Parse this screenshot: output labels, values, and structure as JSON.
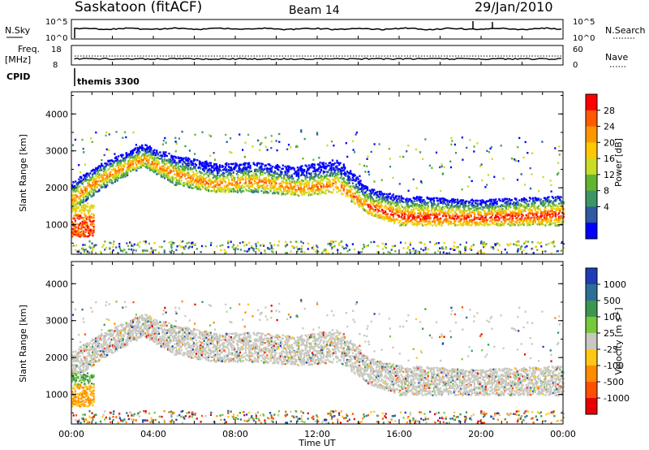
{
  "header": {
    "station": "Saskatoon (fitACF)",
    "beam": "Beam 14",
    "date": "29/Jan/2010"
  },
  "top_panel_labels": {
    "nsky": "N.Sky",
    "nsky_tick_top": "10^5",
    "nsky_tick_bottom": "10^0",
    "nsearch": "N.Search",
    "nsearch_tick_top": "10^5",
    "nsearch_tick_bottom": "10^0",
    "freq": "Freq.",
    "freq_unit": "[MHz]",
    "freq_tick_top": "18",
    "freq_tick_bottom": "8",
    "nave": "Nave",
    "nave_tick_top": "60",
    "nave_tick_bottom": "0",
    "cpid": "CPID",
    "cpid_value": "themis 3300"
  },
  "chart_data": [
    {
      "type": "heatmap",
      "name": "power",
      "ylabel": "Slant Range [km]",
      "ylim": [
        200,
        4600
      ],
      "yticks": [
        "1000",
        "2000",
        "3000",
        "4000"
      ],
      "xlim_hours": [
        0,
        24
      ],
      "colorbar": {
        "label": "Power [dB]",
        "ticks": [
          "28",
          "24",
          "20",
          "16",
          "12",
          "8",
          "4"
        ],
        "colors": [
          "#ff0000",
          "#ff5a00",
          "#ff9600",
          "#ffc800",
          "#c8dc28",
          "#64b432",
          "#3c9664",
          "#2d5aa0",
          "#0000ff"
        ]
      },
      "echo_bands_km": [
        {
          "t": 0.0,
          "lo": 1400,
          "hi": 2200,
          "peak": 1700
        },
        {
          "t": 1.5,
          "lo": 2000,
          "hi": 2700,
          "peak": 2300
        },
        {
          "t": 3.5,
          "lo": 2600,
          "hi": 3200,
          "peak": 2800
        },
        {
          "t": 5.0,
          "lo": 2100,
          "hi": 2900,
          "peak": 2400
        },
        {
          "t": 7.0,
          "lo": 1900,
          "hi": 2700,
          "peak": 2100
        },
        {
          "t": 9.0,
          "lo": 1900,
          "hi": 2700,
          "peak": 2200
        },
        {
          "t": 11.0,
          "lo": 1800,
          "hi": 2600,
          "peak": 2000
        },
        {
          "t": 13.0,
          "lo": 1900,
          "hi": 2800,
          "peak": 2100
        },
        {
          "t": 14.5,
          "lo": 1300,
          "hi": 2000,
          "peak": 1500
        },
        {
          "t": 16.0,
          "lo": 1000,
          "hi": 1800,
          "peak": 1250
        },
        {
          "t": 20.0,
          "lo": 1000,
          "hi": 1700,
          "peak": 1200
        },
        {
          "t": 24.0,
          "lo": 1000,
          "hi": 1800,
          "peak": 1300
        }
      ]
    },
    {
      "type": "heatmap",
      "name": "velocity",
      "ylabel": "Slant Range [km]",
      "ylim": [
        200,
        4600
      ],
      "yticks": [
        "1000",
        "2000",
        "3000",
        "4000"
      ],
      "xlabel": "Time UT",
      "xticks": [
        "00:00",
        "04:00",
        "08:00",
        "12:00",
        "16:00",
        "20:00",
        "00:00"
      ],
      "xlim_hours": [
        0,
        24
      ],
      "colorbar": {
        "label": "Velocity [m s^-1]",
        "ticks": [
          "1000",
          "500",
          "100",
          "25",
          "-25",
          "-100",
          "-500",
          "-1000"
        ],
        "colors": [
          "#1e3cb4",
          "#2d6e96",
          "#3c9650",
          "#78c83c",
          "#c8c8c0",
          "#ffc814",
          "#ff8c00",
          "#ff5000",
          "#e60000"
        ]
      }
    }
  ]
}
